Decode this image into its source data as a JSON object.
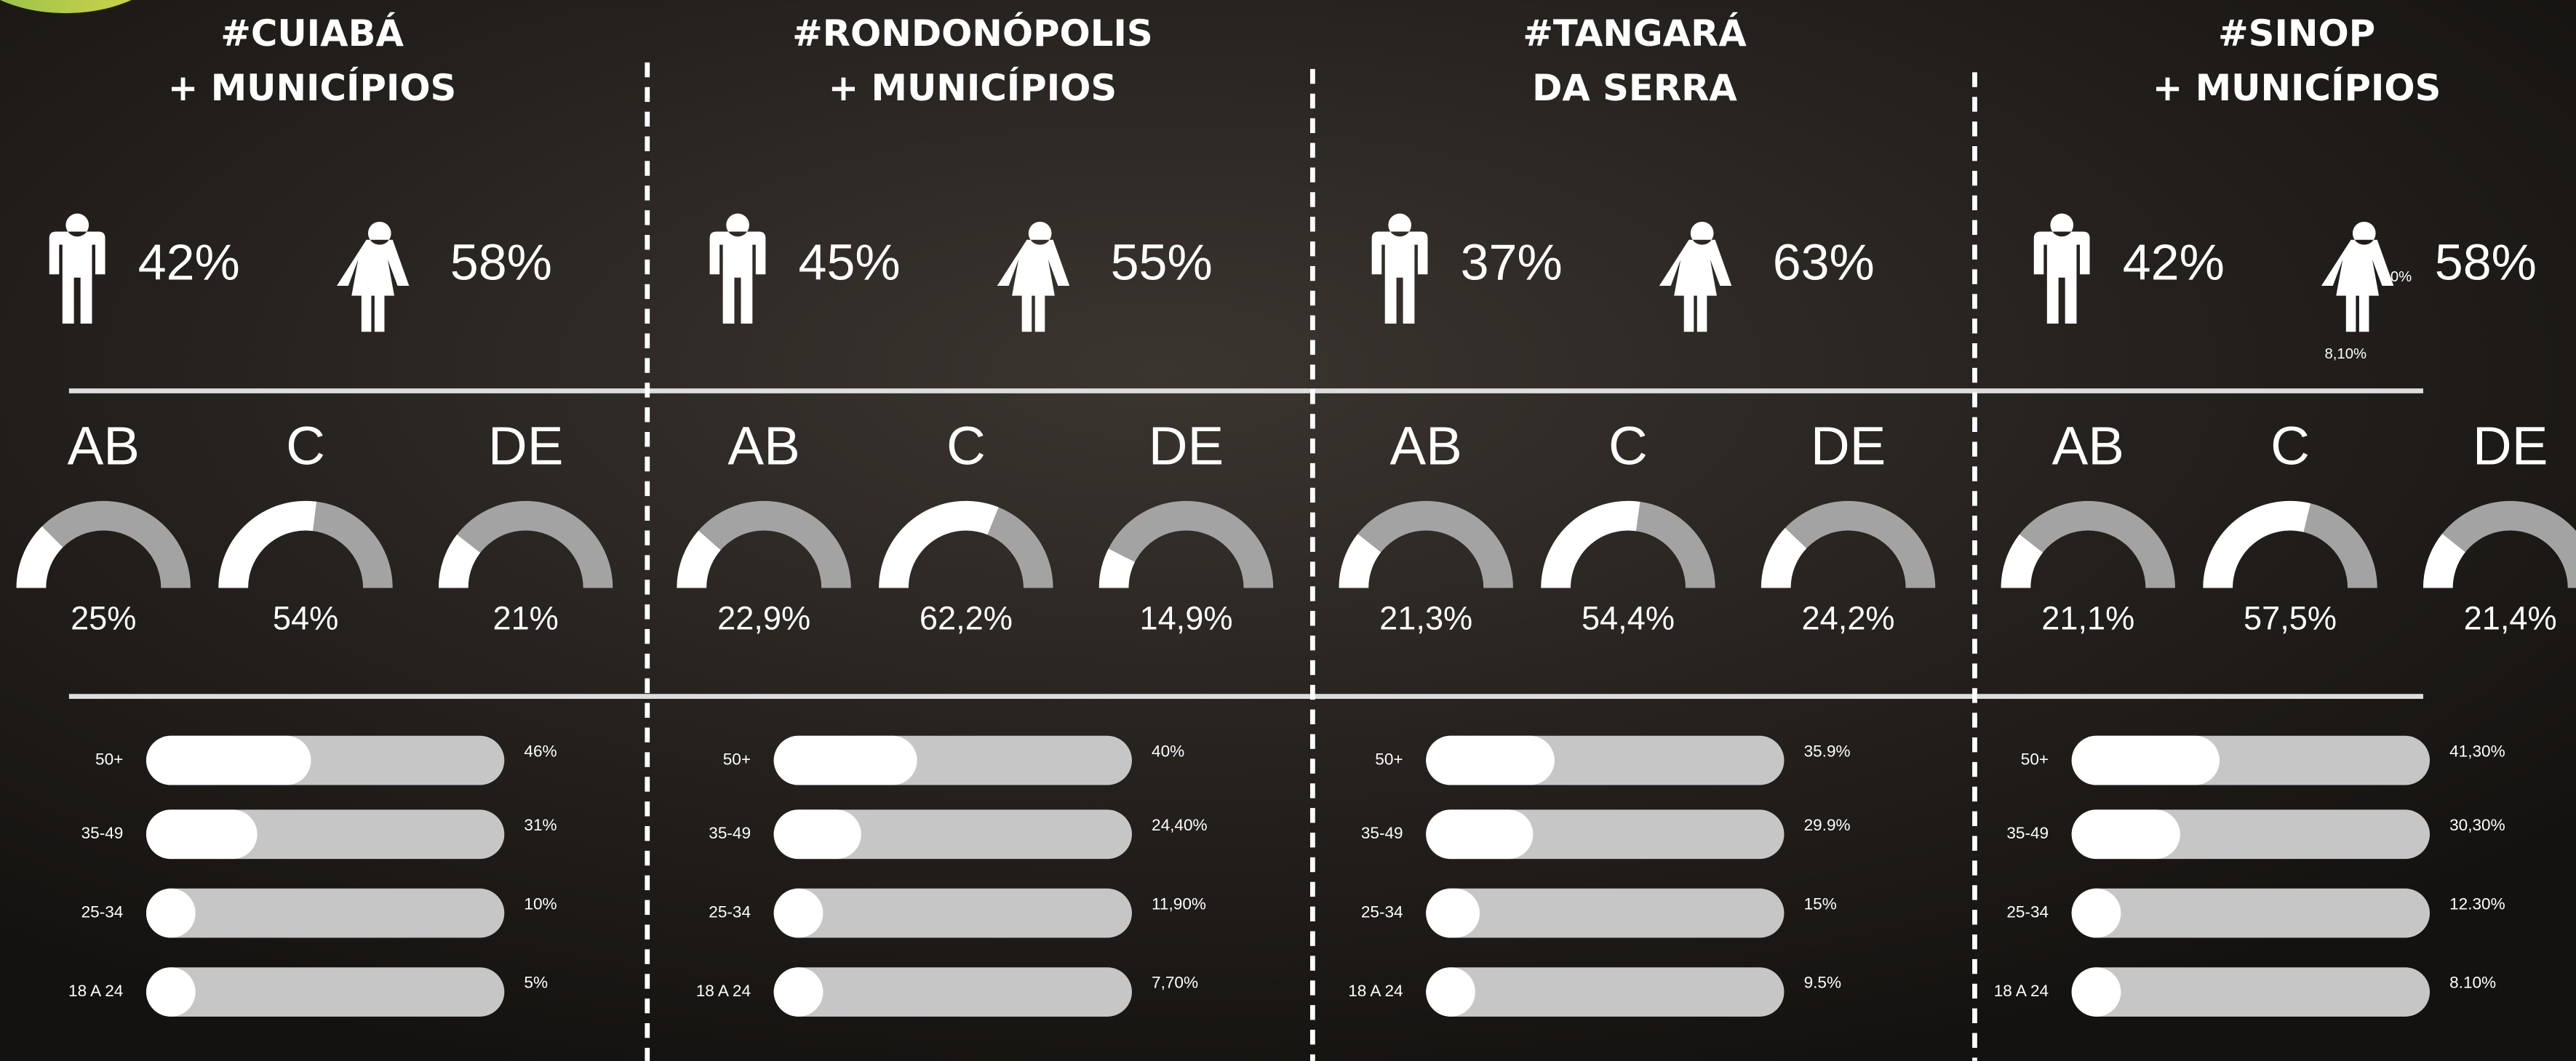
{
  "regions": [
    {
      "title": [
        "#CUIABÁ",
        "+ MUNICÍPIOS"
      ],
      "gender": {
        "male": {
          "value": 42,
          "label": "42%"
        },
        "female": {
          "value": 58,
          "label": "58%"
        }
      },
      "classes": [
        {
          "name": "AB",
          "value": 25,
          "label": "25%"
        },
        {
          "name": "C",
          "value": 54,
          "label": "54%"
        },
        {
          "name": "DE",
          "value": 21,
          "label": "21%"
        }
      ],
      "ages": [
        {
          "name": "50+",
          "value": 46,
          "label": "46%"
        },
        {
          "name": "35-49",
          "value": 31,
          "label": "31%"
        },
        {
          "name": "25-34",
          "value": 10,
          "label": "10%"
        },
        {
          "name": "18 A 24",
          "value": 5,
          "label": "5%"
        }
      ]
    },
    {
      "title": [
        "#RONDONÓPOLIS",
        "+ MUNICÍPIOS"
      ],
      "gender": {
        "male": {
          "value": 45,
          "label": "45%"
        },
        "female": {
          "value": 55,
          "label": "55%"
        }
      },
      "classes": [
        {
          "name": "AB",
          "value": 22.9,
          "label": "22,9%"
        },
        {
          "name": "C",
          "value": 62.2,
          "label": "62,2%"
        },
        {
          "name": "DE",
          "value": 14.9,
          "label": "14,9%"
        }
      ],
      "ages": [
        {
          "name": "50+",
          "value": 40,
          "label": "40%"
        },
        {
          "name": "35-49",
          "value": 24.4,
          "label": "24,40%"
        },
        {
          "name": "25-34",
          "value": 11.9,
          "label": "11,90%"
        },
        {
          "name": "18 A 24",
          "value": 7.7,
          "label": "7,70%"
        }
      ]
    },
    {
      "title": [
        "#TANGARÁ",
        "DA SERRA"
      ],
      "gender": {
        "male": {
          "value": 37,
          "label": "37%"
        },
        "female": {
          "value": 63,
          "label": "63%"
        }
      },
      "classes": [
        {
          "name": "AB",
          "value": 21.3,
          "label": "21,3%"
        },
        {
          "name": "C",
          "value": 54.4,
          "label": "54,4%"
        },
        {
          "name": "DE",
          "value": 24.2,
          "label": "24,2%"
        }
      ],
      "ages": [
        {
          "name": "50+",
          "value": 35.9,
          "label": "35.9%"
        },
        {
          "name": "35-49",
          "value": 29.9,
          "label": "29.9%"
        },
        {
          "name": "25-34",
          "value": 15,
          "label": "15%"
        },
        {
          "name": "18 A 24",
          "value": 9.5,
          "label": "9.5%"
        }
      ]
    },
    {
      "title": [
        "#SINOP",
        "+ MUNICÍPIOS"
      ],
      "gender": {
        "male": {
          "value": 42,
          "label": "42%"
        },
        "female": {
          "value": 58,
          "label": "58%"
        }
      },
      "classes": [
        {
          "name": "AB",
          "value": 21.1,
          "label": "21,1%"
        },
        {
          "name": "C",
          "value": 57.5,
          "label": "57,5%"
        },
        {
          "name": "DE",
          "value": 21.4,
          "label": "21,4%"
        }
      ],
      "ages": [
        {
          "name": "50+",
          "value": 41.3,
          "label": "41,30%"
        },
        {
          "name": "35-49",
          "value": 30.3,
          "label": "30,30%"
        },
        {
          "name": "25-34",
          "value": 12.3,
          "label": "12.30%"
        },
        {
          "name": "18 A 24",
          "value": 8.1,
          "label": "8.10%"
        }
      ],
      "extra_labels": [
        "0%",
        "8,10%"
      ]
    }
  ]
}
